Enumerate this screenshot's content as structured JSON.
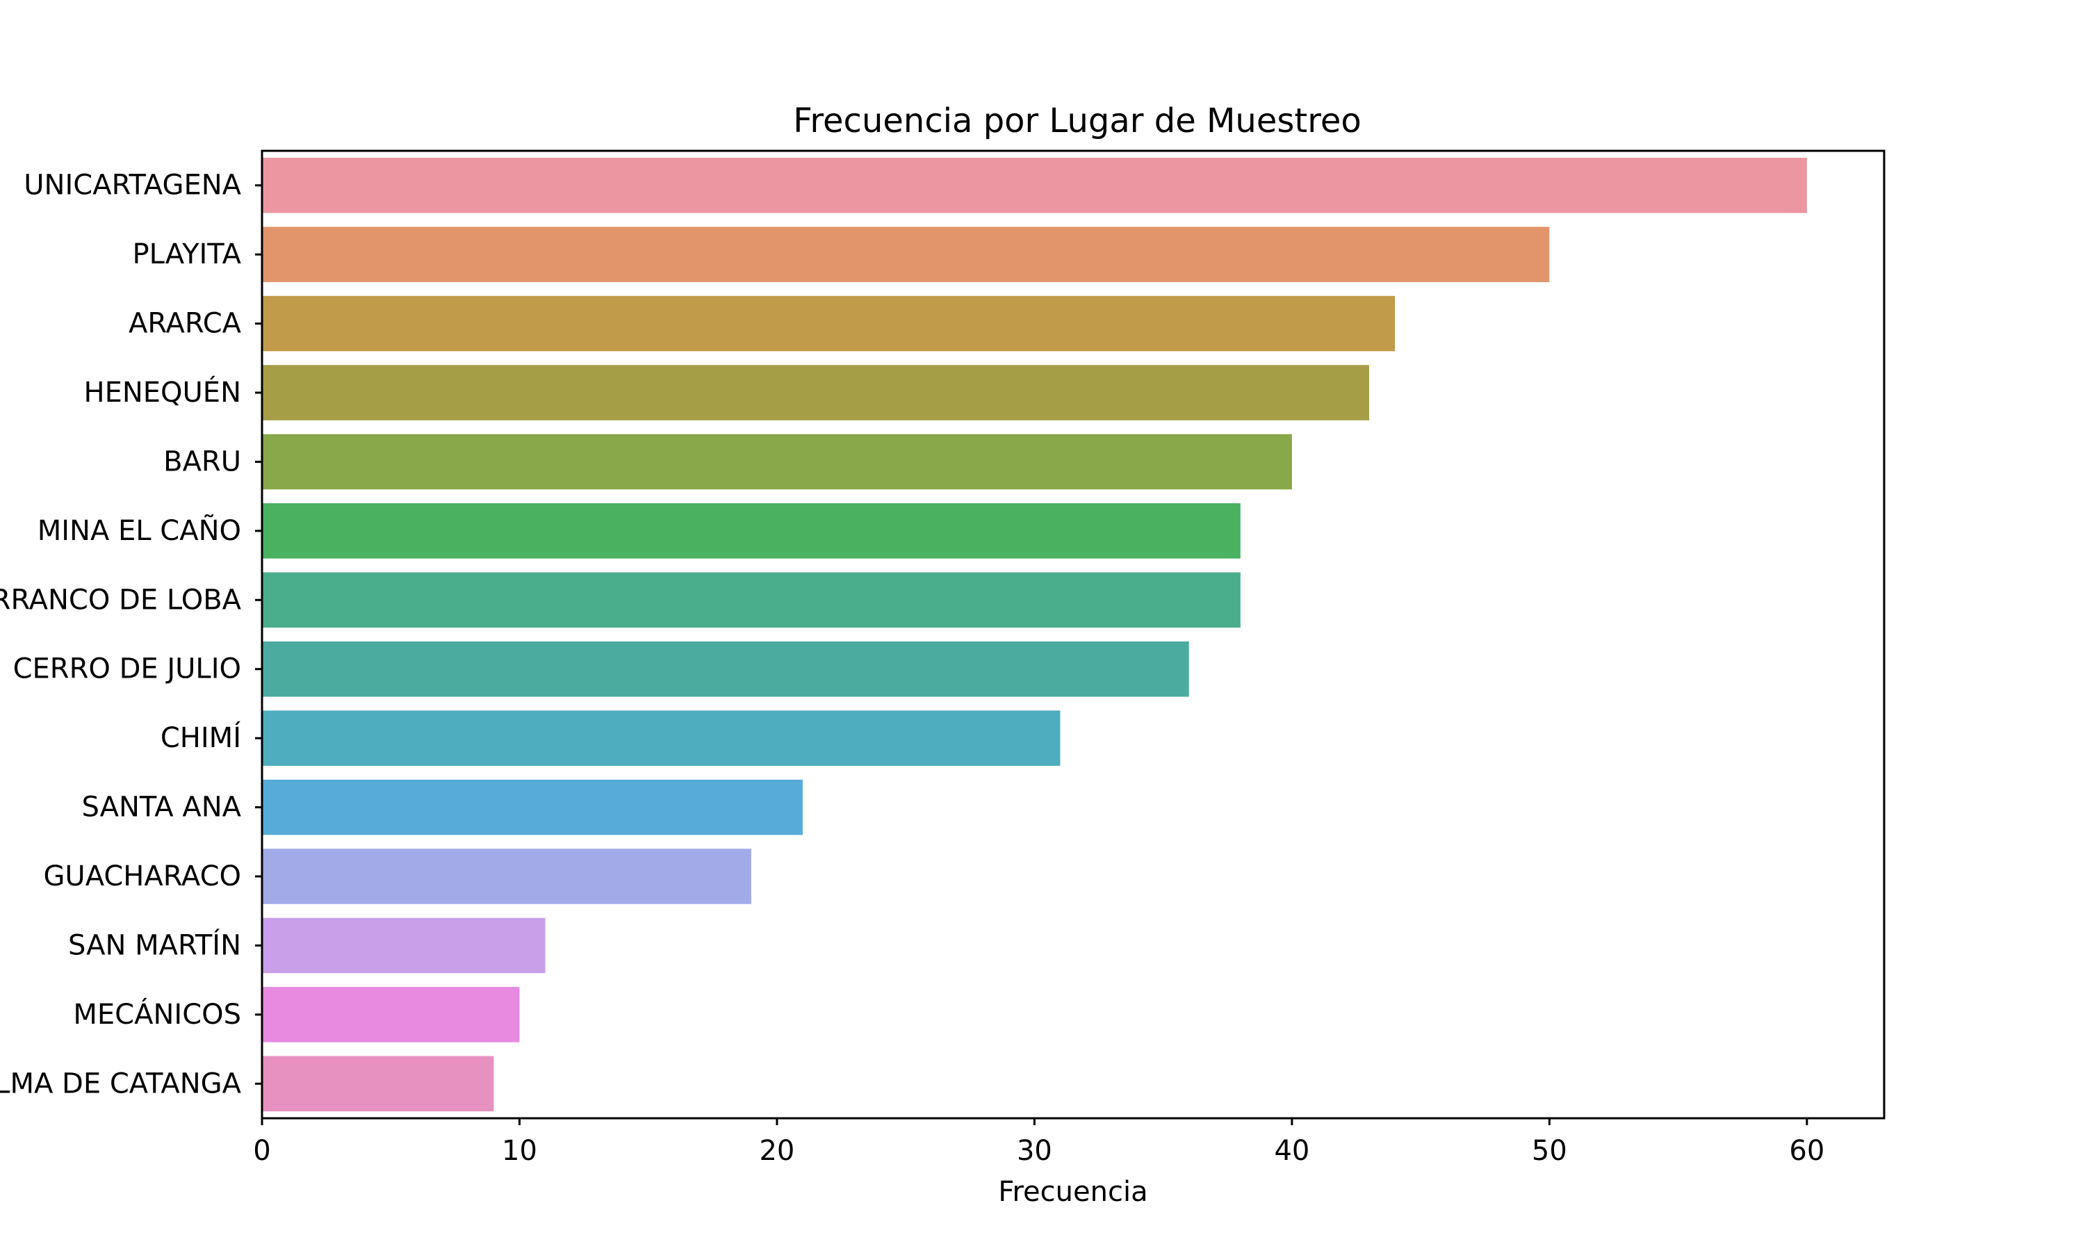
{
  "chart_data": {
    "type": "bar",
    "orientation": "horizontal",
    "title": "Frecuencia por Lugar de Muestreo",
    "xlabel": "Frecuencia",
    "ylabel": "",
    "xlim": [
      0,
      63
    ],
    "xticks": [
      0,
      10,
      20,
      30,
      40,
      50,
      60
    ],
    "grid": false,
    "categories": [
      "UNICARTAGENA",
      "PLAYITA",
      "ARARCA",
      "HENEQUÉN",
      "BARU",
      "MINA EL CAÑO",
      "BARRANCO DE LOBA",
      "CERRO DE JULIO",
      "CHIMÍ",
      "SANTA ANA",
      "GUACHARACO",
      "SAN MARTÍN",
      "MECÁNICOS",
      "CIÉNAGA LA PALMA DE CATANGA"
    ],
    "values": [
      60,
      50,
      44,
      43,
      40,
      38,
      38,
      36,
      31,
      21,
      19,
      11,
      10,
      9
    ],
    "colors": [
      "#ec96a1",
      "#e2946b",
      "#c19b4a",
      "#a69e46",
      "#88a84a",
      "#49b15f",
      "#4aad8b",
      "#4bab9f",
      "#4eadbf",
      "#57abd9",
      "#a2abe8",
      "#c89fe8",
      "#e88ae0",
      "#e791c1"
    ]
  }
}
